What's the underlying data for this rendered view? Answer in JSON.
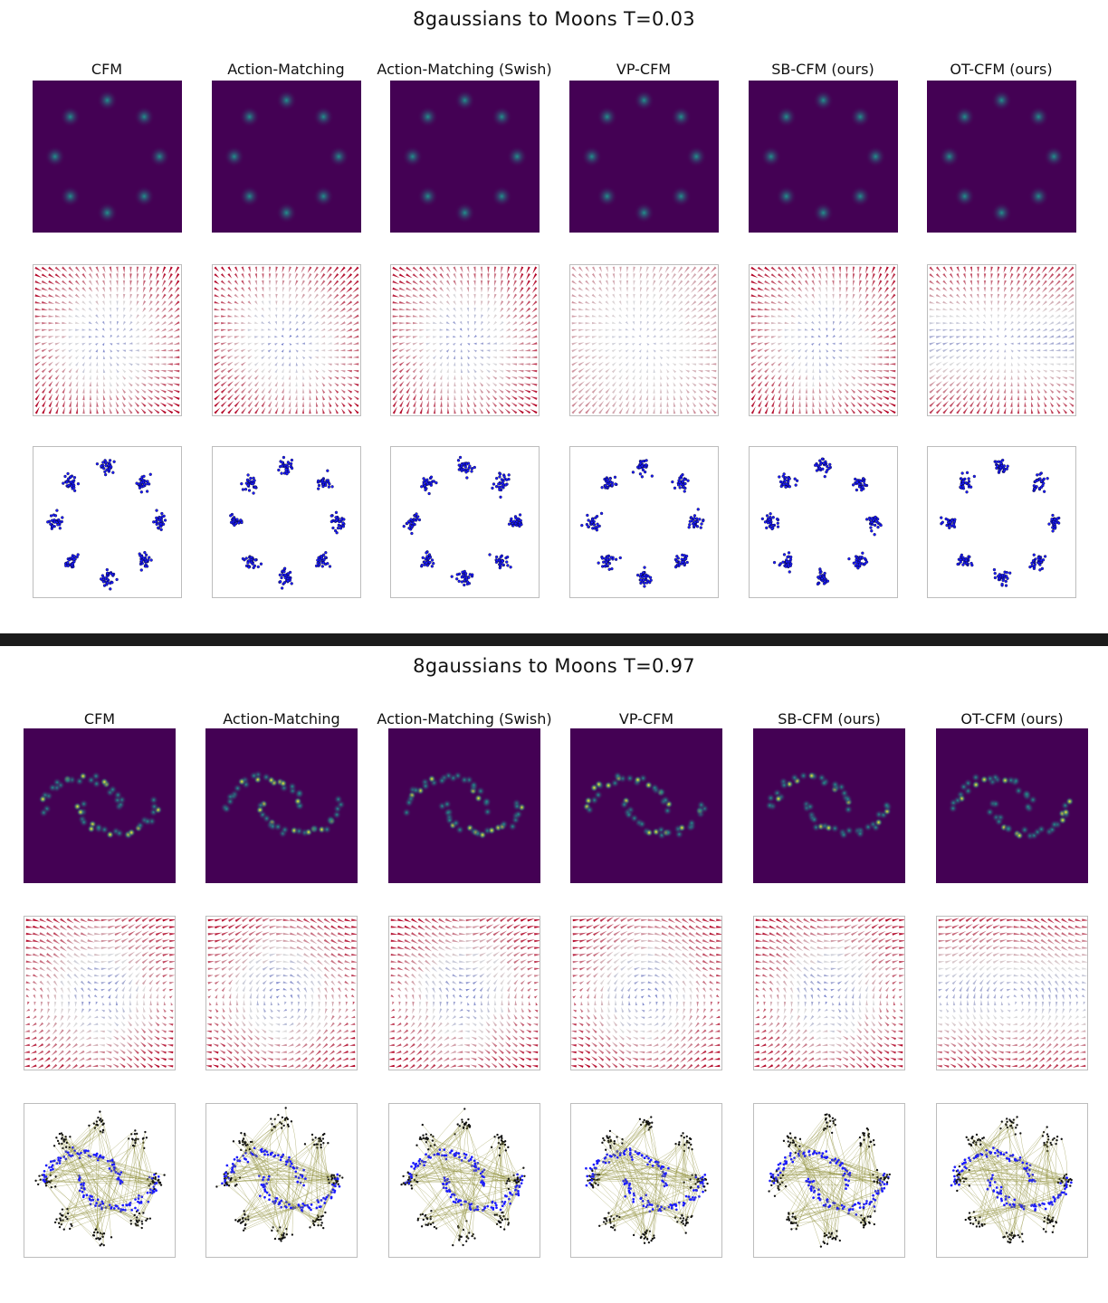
{
  "figures": [
    {
      "title": "8gaussians to Moons T=0.03",
      "time": 0.03,
      "columns": [
        "CFM",
        "Action-Matching",
        "Action-Matching (Swish)",
        "VP-CFM",
        "SB-CFM (ours)",
        "OT-CFM (ours)"
      ],
      "row_types": [
        "density",
        "vector-field",
        "samples"
      ]
    },
    {
      "title": "8gaussians to Moons T=0.97",
      "time": 0.97,
      "columns": [
        "CFM",
        "Action-Matching",
        "Action-Matching (Swish)",
        "VP-CFM",
        "SB-CFM (ours)",
        "OT-CFM (ours)"
      ],
      "row_types": [
        "density",
        "vector-field",
        "samples"
      ]
    }
  ],
  "colors": {
    "density_background": "#440154",
    "density_peak": "#fde725",
    "density_mid": "#21918c",
    "field_cool": "#3b4cc0",
    "field_warm": "#b40426",
    "samples_start": "#111111",
    "samples_end": "#1a1aff",
    "trajectories": "#8f8f3a",
    "divider": "#1b1b1b"
  }
}
